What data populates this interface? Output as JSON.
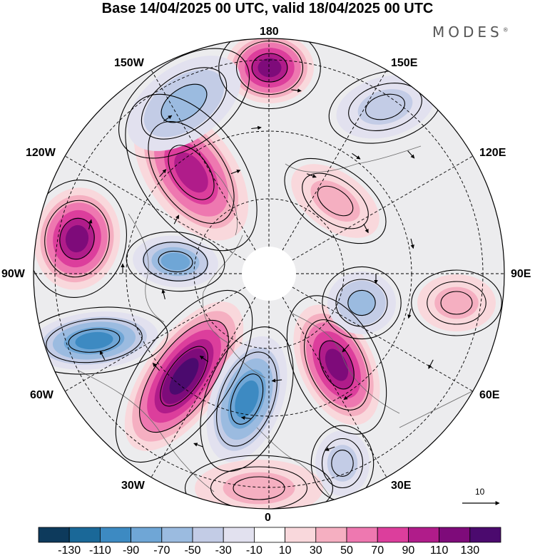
{
  "title": "Base 14/04/2025 00 UTC, valid 18/04/2025 00 UTC",
  "logo": "MODES",
  "logo_mark": "®",
  "longitude_labels": {
    "lon_180": "180",
    "lon_150w": "150W",
    "lon_150e": "150E",
    "lon_120w": "120W",
    "lon_120e": "120E",
    "lon_90w": "90W",
    "lon_90e": "90E",
    "lon_60w": "60W",
    "lon_60e": "60E",
    "lon_30w": "30W",
    "lon_30e": "30E",
    "lon_0": "0"
  },
  "reference_vector": {
    "label": "10"
  },
  "colorbar": {
    "colors": [
      "#0d3a5c",
      "#1a6898",
      "#3d8ac2",
      "#6fa6d6",
      "#9bbbe0",
      "#c3cce6",
      "#e2e1ef",
      "#ffffff",
      "#f9d8dc",
      "#f5afc1",
      "#ee78b0",
      "#dc3e9c",
      "#b01c8a",
      "#7e0b7a",
      "#4b0a6e"
    ],
    "labels": [
      "-130",
      "-110",
      "-90",
      "-70",
      "-50",
      "-30",
      "-10",
      "10",
      "30",
      "50",
      "70",
      "90",
      "110",
      "130"
    ]
  },
  "anomaly_centers": [
    {
      "name": "anomaly-positive-north-pacific",
      "value": 110
    },
    {
      "name": "anomaly-positive-bering",
      "value": 90
    },
    {
      "name": "anomaly-positive-west-canada",
      "value": 110
    },
    {
      "name": "anomaly-positive-north-atlantic",
      "value": 130
    },
    {
      "name": "anomaly-positive-europe",
      "value": 110
    },
    {
      "name": "anomaly-negative-aleutian",
      "value": -50
    },
    {
      "name": "anomaly-negative-hudson",
      "value": -70
    },
    {
      "name": "anomaly-negative-east-us",
      "value": -90
    },
    {
      "name": "anomaly-negative-iceland",
      "value": -90
    },
    {
      "name": "anomaly-negative-ural",
      "value": -50
    },
    {
      "name": "anomaly-negative-north-pacific-east",
      "value": -30
    },
    {
      "name": "anomaly-negative-mediterranean",
      "value": -30
    },
    {
      "name": "anomaly-positive-siberia",
      "value": 30
    },
    {
      "name": "anomaly-positive-central-asia",
      "value": 30
    },
    {
      "name": "anomaly-positive-arctic-east",
      "value": 30
    }
  ]
}
